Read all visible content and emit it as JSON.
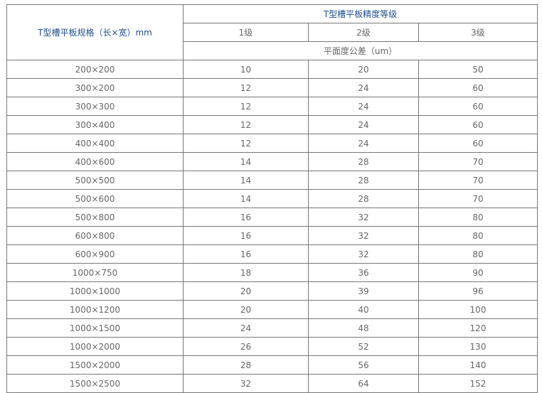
{
  "header": {
    "spec_label": "T型槽平板规格（长×宽）mm",
    "grade_group_label": "T型槽平板精度等级",
    "grades": [
      "1级",
      "2级",
      "3级"
    ],
    "tolerance_label": "平面度公差（um）"
  },
  "colors": {
    "header_text": "#1f4e8c",
    "body_text": "#666666",
    "border": "#777777"
  },
  "rows": [
    {
      "size": "200×200",
      "g1": "10",
      "g2": "20",
      "g3": "50"
    },
    {
      "size": "300×200",
      "g1": "12",
      "g2": "24",
      "g3": "60"
    },
    {
      "size": "300×300",
      "g1": "12",
      "g2": "24",
      "g3": "60"
    },
    {
      "size": "300×400",
      "g1": "12",
      "g2": "24",
      "g3": "60"
    },
    {
      "size": "400×400",
      "g1": "12",
      "g2": "24",
      "g3": "60"
    },
    {
      "size": "400×600",
      "g1": "14",
      "g2": "28",
      "g3": "70"
    },
    {
      "size": "500×500",
      "g1": "14",
      "g2": "28",
      "g3": "70"
    },
    {
      "size": "500×600",
      "g1": "14",
      "g2": "28",
      "g3": "70"
    },
    {
      "size": "500×800",
      "g1": "16",
      "g2": "32",
      "g3": "80"
    },
    {
      "size": "600×800",
      "g1": "16",
      "g2": "32",
      "g3": "80"
    },
    {
      "size": "600×900",
      "g1": "16",
      "g2": "32",
      "g3": "80"
    },
    {
      "size": "1000×750",
      "g1": "18",
      "g2": "36",
      "g3": "90"
    },
    {
      "size": "1000×1000",
      "g1": "20",
      "g2": "39",
      "g3": "96"
    },
    {
      "size": "1000×1200",
      "g1": "20",
      "g2": "40",
      "g3": "100"
    },
    {
      "size": "1000×1500",
      "g1": "24",
      "g2": "48",
      "g3": "120"
    },
    {
      "size": "1000×2000",
      "g1": "26",
      "g2": "52",
      "g3": "130"
    },
    {
      "size": "1500×2000",
      "g1": "28",
      "g2": "56",
      "g3": "140"
    },
    {
      "size": "1500×2500",
      "g1": "32",
      "g2": "64",
      "g3": "152"
    }
  ]
}
